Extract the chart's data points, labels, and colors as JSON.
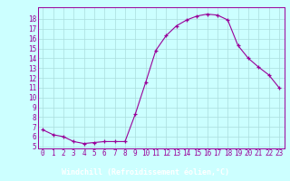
{
  "x": [
    0,
    1,
    2,
    3,
    4,
    5,
    6,
    7,
    8,
    9,
    10,
    11,
    12,
    13,
    14,
    15,
    16,
    17,
    18,
    19,
    20,
    21,
    22,
    23
  ],
  "y": [
    6.7,
    6.2,
    6.0,
    5.5,
    5.3,
    5.4,
    5.5,
    5.5,
    5.5,
    8.3,
    11.5,
    14.8,
    16.3,
    17.3,
    17.9,
    18.3,
    18.5,
    18.4,
    17.9,
    15.3,
    14.0,
    13.1,
    12.3,
    11.0
  ],
  "line_color": "#990099",
  "marker": "+",
  "marker_size": 3,
  "bg_color": "#ccffff",
  "grid_color": "#aadddd",
  "xlabel": "Windchill (Refroidissement éolien,°C)",
  "xlabel_bg": "#660066",
  "xlabel_color": "#ffffff",
  "ylabel_ticks": [
    5,
    6,
    7,
    8,
    9,
    10,
    11,
    12,
    13,
    14,
    15,
    16,
    17,
    18
  ],
  "xticks": [
    0,
    1,
    2,
    3,
    4,
    5,
    6,
    7,
    8,
    9,
    10,
    11,
    12,
    13,
    14,
    15,
    16,
    17,
    18,
    19,
    20,
    21,
    22,
    23
  ],
  "ylim": [
    4.8,
    19.2
  ],
  "xlim": [
    -0.5,
    23.5
  ],
  "tick_fontsize": 5.5,
  "label_fontsize": 6.0
}
